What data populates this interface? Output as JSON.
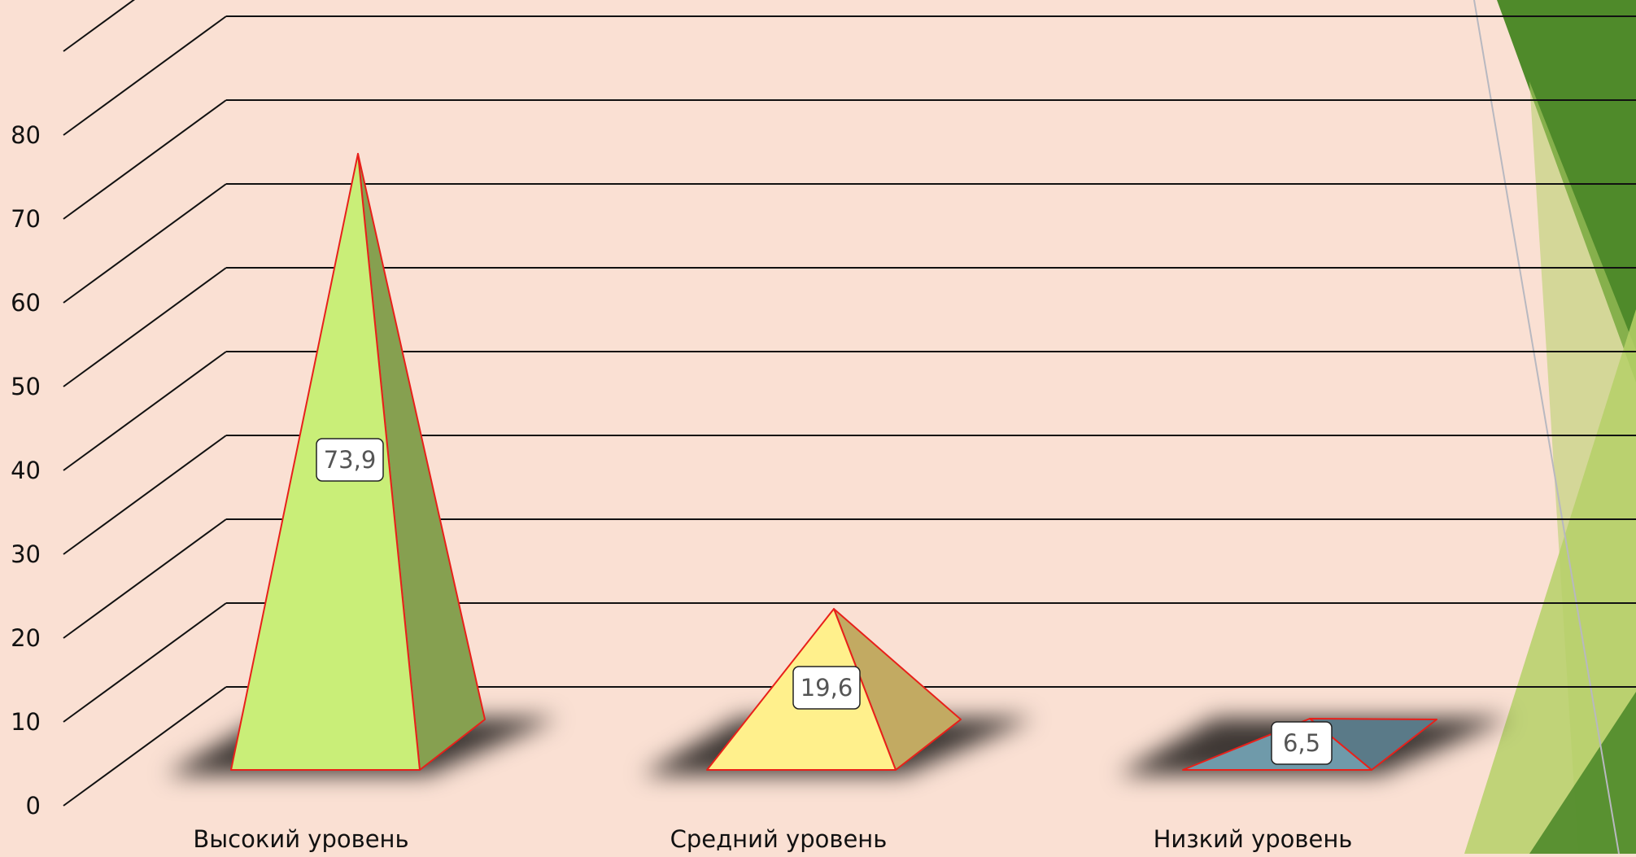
{
  "chart_data": {
    "type": "bar",
    "style": "3d-pyramid",
    "categories": [
      "Высокий уровень",
      "Средний уровень",
      "Низкий уровень"
    ],
    "values": [
      73.9,
      19.6,
      6.5
    ],
    "data_labels": [
      "73,9",
      "19,6",
      "6,5"
    ],
    "y_ticks": [
      "0",
      "10",
      "20",
      "30",
      "40",
      "50",
      "60",
      "70",
      "80"
    ],
    "ylim": [
      0,
      90
    ],
    "grid": true,
    "legend": "none",
    "title": "",
    "xlabel": "",
    "ylabel": "",
    "colors": {
      "pyramid_1_front": "#c9ee78",
      "pyramid_1_side": "#86a050",
      "pyramid_2_front": "#fff08c",
      "pyramid_2_side": "#c2aa62",
      "pyramid_3_front": "#6f9aaa",
      "pyramid_3_side": "#5a7a88",
      "edge": "#e8201a",
      "background": "#fae0d3",
      "decor_dark_green": "#4f8a2a",
      "decor_light_green": "#b5d067"
    }
  }
}
